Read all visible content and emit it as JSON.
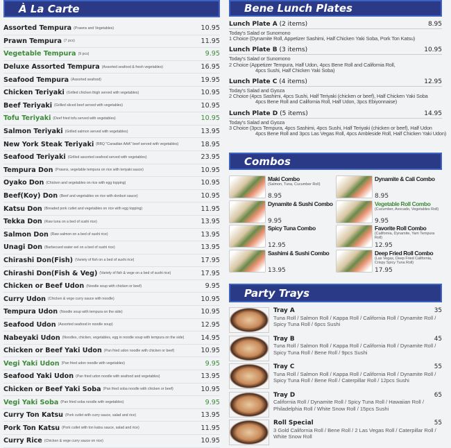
{
  "a_la_carte": {
    "title": "À La Carte",
    "items": [
      {
        "name": "Assorted Tempura",
        "desc": "(Prawns and Vegetables)",
        "price": "10.95"
      },
      {
        "name": "Prawn Tempura",
        "desc": "(7 pcs)",
        "price": "11.95"
      },
      {
        "name": "Vegetable Tempura",
        "desc": "(9 pcs)",
        "price": "9.95",
        "veg": true
      },
      {
        "name": "Deluxe Assorted Tempura",
        "desc": "(Assorted seafood & fresh vegetables)",
        "price": "16.95"
      },
      {
        "name": "Seafood Tempura",
        "desc": "(Assorted seafood)",
        "price": "19.95"
      },
      {
        "name": "Chicken Teriyaki",
        "desc": "(Grilled chicken thigh served with vegetables)",
        "price": "10.95"
      },
      {
        "name": "Beef Teriyaki",
        "desc": "(Grilled sliced beef served with vegetables)",
        "price": "10.95"
      },
      {
        "name": "Tofu Teriyaki",
        "desc": "(Deef fried tofu served with vegetables)",
        "price": "10.95",
        "veg": true
      },
      {
        "name": "Salmon Teriyaki",
        "desc": "(Grilled salmon served with vegetables)",
        "price": "13.95"
      },
      {
        "name": "New York Steak Teriyaki",
        "desc": "(BBQ \"Canadian AAA\" beef served with vegetables)",
        "price": "18.95"
      },
      {
        "name": "Seafood Teriyaki",
        "desc": "(Grilled assorted seafood served with vegetables)",
        "price": "23.95"
      },
      {
        "name": "Tempura Don",
        "desc": "(Prawns, vegetable tempura on rice with teriyaki sauce)",
        "price": "10.95"
      },
      {
        "name": "Oyako Don",
        "desc": "(Chicken and vegetables on rice with egg topping)",
        "price": "10.95"
      },
      {
        "name": "Beef(Koy) Don",
        "desc": "(Beef and vegetables on rice with donburi sauce)",
        "price": "10.95"
      },
      {
        "name": "Katsu Don",
        "desc": "(Breaded pork cutlet and vegetables on rice with egg topping)",
        "price": "11.95"
      },
      {
        "name": "Tekka Don",
        "desc": "(Raw tuna on a bed of sushi rice)",
        "price": "13.95"
      },
      {
        "name": "Salmon Don",
        "desc": "(Raw salmon on a bed of sushi rice)",
        "price": "13.95"
      },
      {
        "name": "Unagi Don",
        "desc": "(Barbecued water eel on a bed of sushi rice)",
        "price": "13.95"
      },
      {
        "name": "Chirashi Don(Fish)",
        "desc": "(Variety of fish on a bed of sushi rice)",
        "price": "17.95"
      },
      {
        "name": "Chirashi Don(Fish & Veg)",
        "desc": "(Variety of fish & vege on a bed of sushi rice)",
        "price": "17.95"
      },
      {
        "name": "Chicken or Beef Udon",
        "desc": "(Noodle soup with chicken or beef)",
        "price": "9.95"
      },
      {
        "name": "Curry Udon",
        "desc": "(Chicken & vege curry sauce with noodle)",
        "price": "10.95"
      },
      {
        "name": "Tempura Udon",
        "desc": "(Noodle soup with tempura on the side)",
        "price": "10.95"
      },
      {
        "name": "Seafood Udon",
        "desc": "(Assorted seafood in noodle soup)",
        "price": "12.95"
      },
      {
        "name": "Nabeyaki Udon",
        "desc": "(Noodles, chicken, vegetables, egg in noodle soup with tempura on the side)",
        "price": "14.95"
      },
      {
        "name": "Chicken or Beef Yaki Udon",
        "desc": "(Pan fried udon noodle with chicken or beef)",
        "price": "10.95"
      },
      {
        "name": "Vegi Yaki Udon",
        "desc": "(Pan fried udon noodle with vegetables)",
        "price": "9.95",
        "veg": true
      },
      {
        "name": "Seafood Yaki Udon",
        "desc": "(Pan fried udon noodle with seafood and vegetables)",
        "price": "13.95"
      },
      {
        "name": "Chicken or Beef Yaki Soba",
        "desc": "(Pan fried soba noodle with chicken or beef)",
        "price": "10.95"
      },
      {
        "name": "Vegi Yaki Soba",
        "desc": "(Pan fried soba noodle with vegetables)",
        "price": "9.95",
        "veg": true
      },
      {
        "name": "Curry Ton Katsu",
        "desc": "(Pork cutlet with curry sauce, salad and rice)",
        "price": "13.95"
      },
      {
        "name": "Pork Ton Katsu",
        "desc": "(Pork cutlet with ton katsu sauce, salad and rice)",
        "price": "11.95"
      },
      {
        "name": "Curry Rice",
        "desc": "(Chicken & vege curry sauce on rice)",
        "price": "10.95"
      }
    ]
  },
  "lunch": {
    "title": "Bene Lunch Plates",
    "plates": [
      {
        "name": "Lunch Plate A",
        "count": "(2 items)",
        "price": "8.95",
        "lines": [
          "Today's Salad or Sunomono",
          "1 Choice (Dynamite Roll, Appetizer Sashimi, Half Chicken Yaki Soba, Pork Ton Katsu)"
        ]
      },
      {
        "name": "Lunch Plate B",
        "count": "(3 items)",
        "price": "10.95",
        "lines": [
          "Today's Salad or Sunomono",
          "2 Choice (Appetizer Tempura, Half Udon, 4pcs Bene Roll and California Roll,",
          "4pcs Sushi, Half Chicken Yaki Soba)"
        ]
      },
      {
        "name": "Lunch Plate C",
        "count": "(4 items)",
        "price": "12.95",
        "lines": [
          "Today's Salad and Gyoza",
          "2 Choice (4pcs Sashimi, 4pcs Sushi, Half Teriyaki (chicken or beef), Half Chicken Yaki Soba",
          "4pcs Bene Roll and California Roll, Half Udon, 3pcs Ebiyonnaise)"
        ]
      },
      {
        "name": "Lunch Plate D",
        "count": "(5 items)",
        "price": "14.95",
        "lines": [
          "Today's Salad and Gyoza",
          "3 Choice (3pcs Tempura, 4pcs Sashimi, 4pcs Sushi, Half Teriyaki (chicken or beef), Half Udon",
          "4pcs Bene Roll and 3pcs Las Vegas Roll, 4pcs Ambleside Roll, Half Chicken Yaki Udon)"
        ]
      }
    ]
  },
  "combos": {
    "title": "Combos",
    "items": [
      {
        "name": "Maki Combo",
        "desc": "(Salmon, Tuna, Cucumber Roll)",
        "price": "8.95"
      },
      {
        "name": "Dynamite & Cali Combo",
        "desc": "",
        "price": "8.95"
      },
      {
        "name": "Dynamite & Sushi Combo",
        "desc": "",
        "price": "9.95"
      },
      {
        "name": "Vegetable Roll Combo",
        "desc": "(Cucumber, Avocado, Vegetables Roll)",
        "price": "9.95",
        "veg": true
      },
      {
        "name": "Spicy Tuna Combo",
        "desc": "",
        "price": "12.95"
      },
      {
        "name": "Favorite Roll Combo",
        "desc": "(California, Dynamite, Yam Tempura Roll)",
        "price": "12.95"
      },
      {
        "name": "Sashimi & Sushi Combo",
        "desc": "",
        "price": "13.95"
      },
      {
        "name": "Deep Fried Roll Combo",
        "desc": "(Las Vegas, Deep Fried California, Crispy Spicy Tuna Roll)",
        "price": "17.95"
      }
    ]
  },
  "party_trays": {
    "title": "Party Trays",
    "items": [
      {
        "name": "Tray A",
        "price": "35",
        "desc": "Tuna Roll / Salmon Roll / Kappa Roll / California Roll / Dynamite Roll / Spicy Tuna Roll / 6pcs Sushi"
      },
      {
        "name": "Tray B",
        "price": "45",
        "desc": "Tuna Roll / Salmon Roll / Kappa Roll / California Roll / Dynamite Roll / Spicy Tuna Roll / Bene Roll / 9pcs Sushi"
      },
      {
        "name": "Tray C",
        "price": "55",
        "desc": "Tuna Roll / Salmon Roll / Kappa Roll / California Roll / Dynamite Roll / Spicy Tuna Roll / Bene Roll / Caterpillar Roll / 12pcs Sushi"
      },
      {
        "name": "Tray D",
        "price": "65",
        "desc": "California Roll / Dynamite Roll / Spicy Tuna Roll / Hawaiian Roll / Philadelphia Roll / White Snow Roll / 15pcs Sushi"
      },
      {
        "name": "Roll Special",
        "price": "55",
        "desc": "3 Gold California Roll / Bene Roll / 2 Las Vegas Roll / Caterpillar Roll / White Snow Roll"
      }
    ]
  },
  "colors": {
    "header_bg": "#2a3a86",
    "vegetarian": "#3d8a3a"
  }
}
